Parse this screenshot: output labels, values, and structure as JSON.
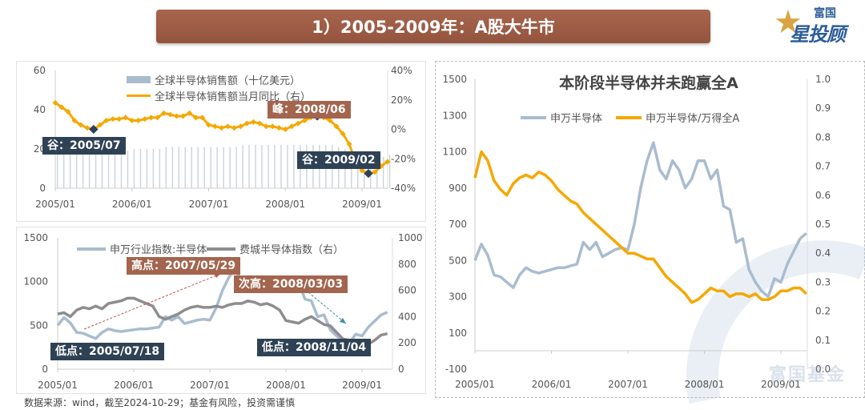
{
  "header": {
    "title": "1）2005-2009年：A股大牛市"
  },
  "logo": {
    "top": "富国",
    "bottom": "星投顾",
    "icon": "star-icon"
  },
  "watermark": "富国基金",
  "footer": "数据来源：wind，截至2024-10-29；基金有风险，投资需谨慎",
  "colors": {
    "title_bg": "#9c5a45",
    "orange": "#f5a800",
    "blue_grey": "#9fb3c8",
    "grey": "#8e8e8e",
    "dark_label": "#2f4255",
    "brown_label": "#a3654e"
  },
  "chart_data": [
    {
      "type": "bar+line",
      "x_ticks": [
        "2005/01",
        "2006/01",
        "2007/01",
        "2008/01",
        "2009/01"
      ],
      "yleft_ticks": [
        "0",
        "20",
        "40",
        "60"
      ],
      "yright_ticks": [
        "-40%",
        "-20%",
        "0%",
        "20%",
        "40%"
      ],
      "ylim_left": [
        0,
        60
      ],
      "ylim_right": [
        -40,
        40
      ],
      "x_start": "2005/01",
      "x_frequency": "monthly",
      "series": [
        {
          "name": "全球半导体销售额（十亿美元）",
          "kind": "bar",
          "axis": "left",
          "values": [
            18,
            18,
            18,
            18,
            18,
            19,
            19,
            19,
            19,
            19,
            19,
            19,
            20,
            20,
            20,
            20,
            20,
            21,
            21,
            21,
            21,
            21,
            21,
            21,
            21,
            21,
            21,
            21,
            21,
            22,
            22,
            22,
            22,
            22,
            22,
            22,
            22,
            22,
            22,
            22,
            22,
            22,
            22,
            22,
            21,
            20,
            18,
            16,
            14,
            14,
            15,
            16,
            17
          ]
        },
        {
          "name": "全球半导体销售额当月同比（右）",
          "kind": "line",
          "axis": "right",
          "values": [
            18,
            15,
            12,
            6,
            3,
            1,
            0,
            3,
            6,
            7,
            7,
            8,
            6,
            6,
            7,
            8,
            8,
            11,
            10,
            9,
            9,
            11,
            8,
            8,
            3,
            2,
            1,
            2,
            1,
            2,
            4,
            5,
            4,
            2,
            2,
            1,
            0,
            2,
            4,
            6,
            8,
            9,
            8,
            6,
            2,
            -3,
            -10,
            -22,
            -28,
            -30,
            -29,
            -25,
            -22
          ]
        }
      ],
      "annotations": [
        {
          "label": "谷：2005/07",
          "style": "dark",
          "index": 6
        },
        {
          "label": "峰：2008/06",
          "style": "brown",
          "index": 41
        },
        {
          "label": "谷：2009/02",
          "style": "dark",
          "index": 49
        }
      ],
      "legend": "top-center"
    },
    {
      "type": "line",
      "x_ticks": [
        "2005/01",
        "2006/01",
        "2007/01",
        "2008/01",
        "2009/01"
      ],
      "yleft_ticks": [
        "0",
        "500",
        "1000",
        "1500"
      ],
      "yright_ticks": [
        "0",
        "200",
        "400",
        "600",
        "800",
        "1000"
      ],
      "ylim_left": [
        0,
        1500
      ],
      "ylim_right": [
        0,
        1000
      ],
      "x_start": "2005/01",
      "x_frequency": "monthly",
      "series": [
        {
          "name": "申万行业指数:半导体",
          "axis": "left",
          "values": [
            500,
            590,
            530,
            420,
            410,
            380,
            350,
            420,
            460,
            440,
            430,
            440,
            450,
            460,
            460,
            470,
            480,
            600,
            560,
            600,
            520,
            540,
            560,
            570,
            560,
            700,
            900,
            1050,
            1150,
            1000,
            950,
            1050,
            1000,
            900,
            950,
            1050,
            1050,
            950,
            1000,
            800,
            780,
            600,
            620,
            450,
            380,
            330,
            300,
            400,
            380,
            480,
            550,
            620,
            650
          ]
        },
        {
          "name": "费城半导体指数（右）",
          "axis": "right",
          "values": [
            420,
            430,
            400,
            450,
            470,
            460,
            480,
            460,
            500,
            510,
            520,
            540,
            540,
            520,
            500,
            480,
            400,
            380,
            400,
            420,
            450,
            470,
            480,
            470,
            470,
            480,
            470,
            490,
            500,
            500,
            520,
            510,
            490,
            500,
            480,
            450,
            370,
            360,
            350,
            380,
            400,
            370,
            340,
            330,
            280,
            230,
            220,
            200,
            180,
            190,
            220,
            260,
            270
          ]
        }
      ],
      "annotations": [
        {
          "label": "高点：2007/05/29",
          "style": "brown"
        },
        {
          "label": "次高：2008/03/03",
          "style": "brown"
        },
        {
          "label": "低点：2005/07/18",
          "style": "dark"
        },
        {
          "label": "低点：2008/11/04",
          "style": "dark"
        }
      ],
      "legend": "top-center"
    },
    {
      "type": "line",
      "title": "本阶段半导体并未跑赢全A",
      "x_ticks": [
        "2005/01",
        "2006/01",
        "2007/01",
        "2008/01",
        "2009/01"
      ],
      "yleft_ticks": [
        "-100",
        "100",
        "300",
        "500",
        "700",
        "900",
        "1100",
        "1300",
        "1500"
      ],
      "yright_ticks": [
        "0.0",
        "0.1",
        "0.2",
        "0.3",
        "0.4",
        "0.5",
        "0.6",
        "0.7",
        "0.8",
        "0.9",
        "1.0"
      ],
      "ylim_left": [
        -100,
        1500
      ],
      "ylim_right": [
        0,
        1
      ],
      "x_start": "2005/01",
      "x_frequency": "monthly",
      "series": [
        {
          "name": "申万半导体",
          "axis": "left",
          "values": [
            500,
            590,
            530,
            420,
            410,
            380,
            350,
            420,
            460,
            440,
            430,
            440,
            450,
            460,
            460,
            470,
            480,
            600,
            560,
            600,
            520,
            540,
            560,
            570,
            560,
            700,
            900,
            1050,
            1150,
            1000,
            950,
            1050,
            1000,
            900,
            950,
            1050,
            1050,
            950,
            1000,
            800,
            780,
            600,
            620,
            450,
            380,
            330,
            300,
            400,
            380,
            480,
            550,
            620,
            650
          ]
        },
        {
          "name": "申万半导体/万得全A",
          "axis": "right",
          "values": [
            0.66,
            0.75,
            0.72,
            0.65,
            0.62,
            0.6,
            0.64,
            0.66,
            0.67,
            0.66,
            0.68,
            0.67,
            0.65,
            0.62,
            0.6,
            0.58,
            0.57,
            0.54,
            0.52,
            0.5,
            0.48,
            0.46,
            0.44,
            0.42,
            0.4,
            0.4,
            0.39,
            0.38,
            0.38,
            0.35,
            0.32,
            0.3,
            0.28,
            0.26,
            0.23,
            0.24,
            0.26,
            0.28,
            0.27,
            0.27,
            0.25,
            0.26,
            0.26,
            0.25,
            0.26,
            0.24,
            0.24,
            0.25,
            0.27,
            0.27,
            0.28,
            0.28,
            0.26
          ]
        }
      ],
      "legend": "top-center"
    }
  ]
}
